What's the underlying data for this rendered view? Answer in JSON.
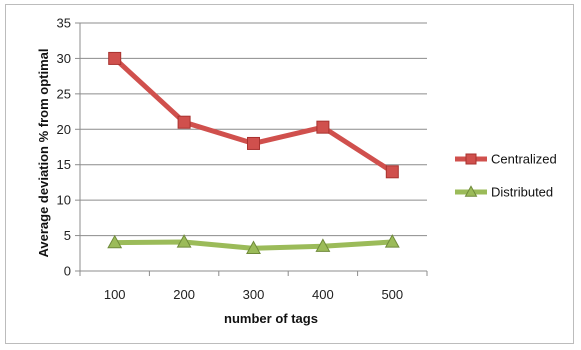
{
  "chart_data": {
    "type": "line",
    "x": [
      100,
      200,
      300,
      400,
      500
    ],
    "xlabel": "number of tags",
    "ylabel": "Average deviation % from optimal",
    "ylim": [
      0,
      35
    ],
    "yticks": [
      0,
      5,
      10,
      15,
      20,
      25,
      30,
      35
    ],
    "grid": true,
    "legend_position": "right",
    "series": [
      {
        "name": "Centralized",
        "values": [
          30,
          21,
          18,
          20.3,
          14
        ],
        "color": "#d0504d",
        "marker": "square"
      },
      {
        "name": "Distributed",
        "values": [
          4,
          4.1,
          3.2,
          3.5,
          4.1
        ],
        "color": "#9bbb59",
        "marker": "triangle"
      }
    ]
  }
}
